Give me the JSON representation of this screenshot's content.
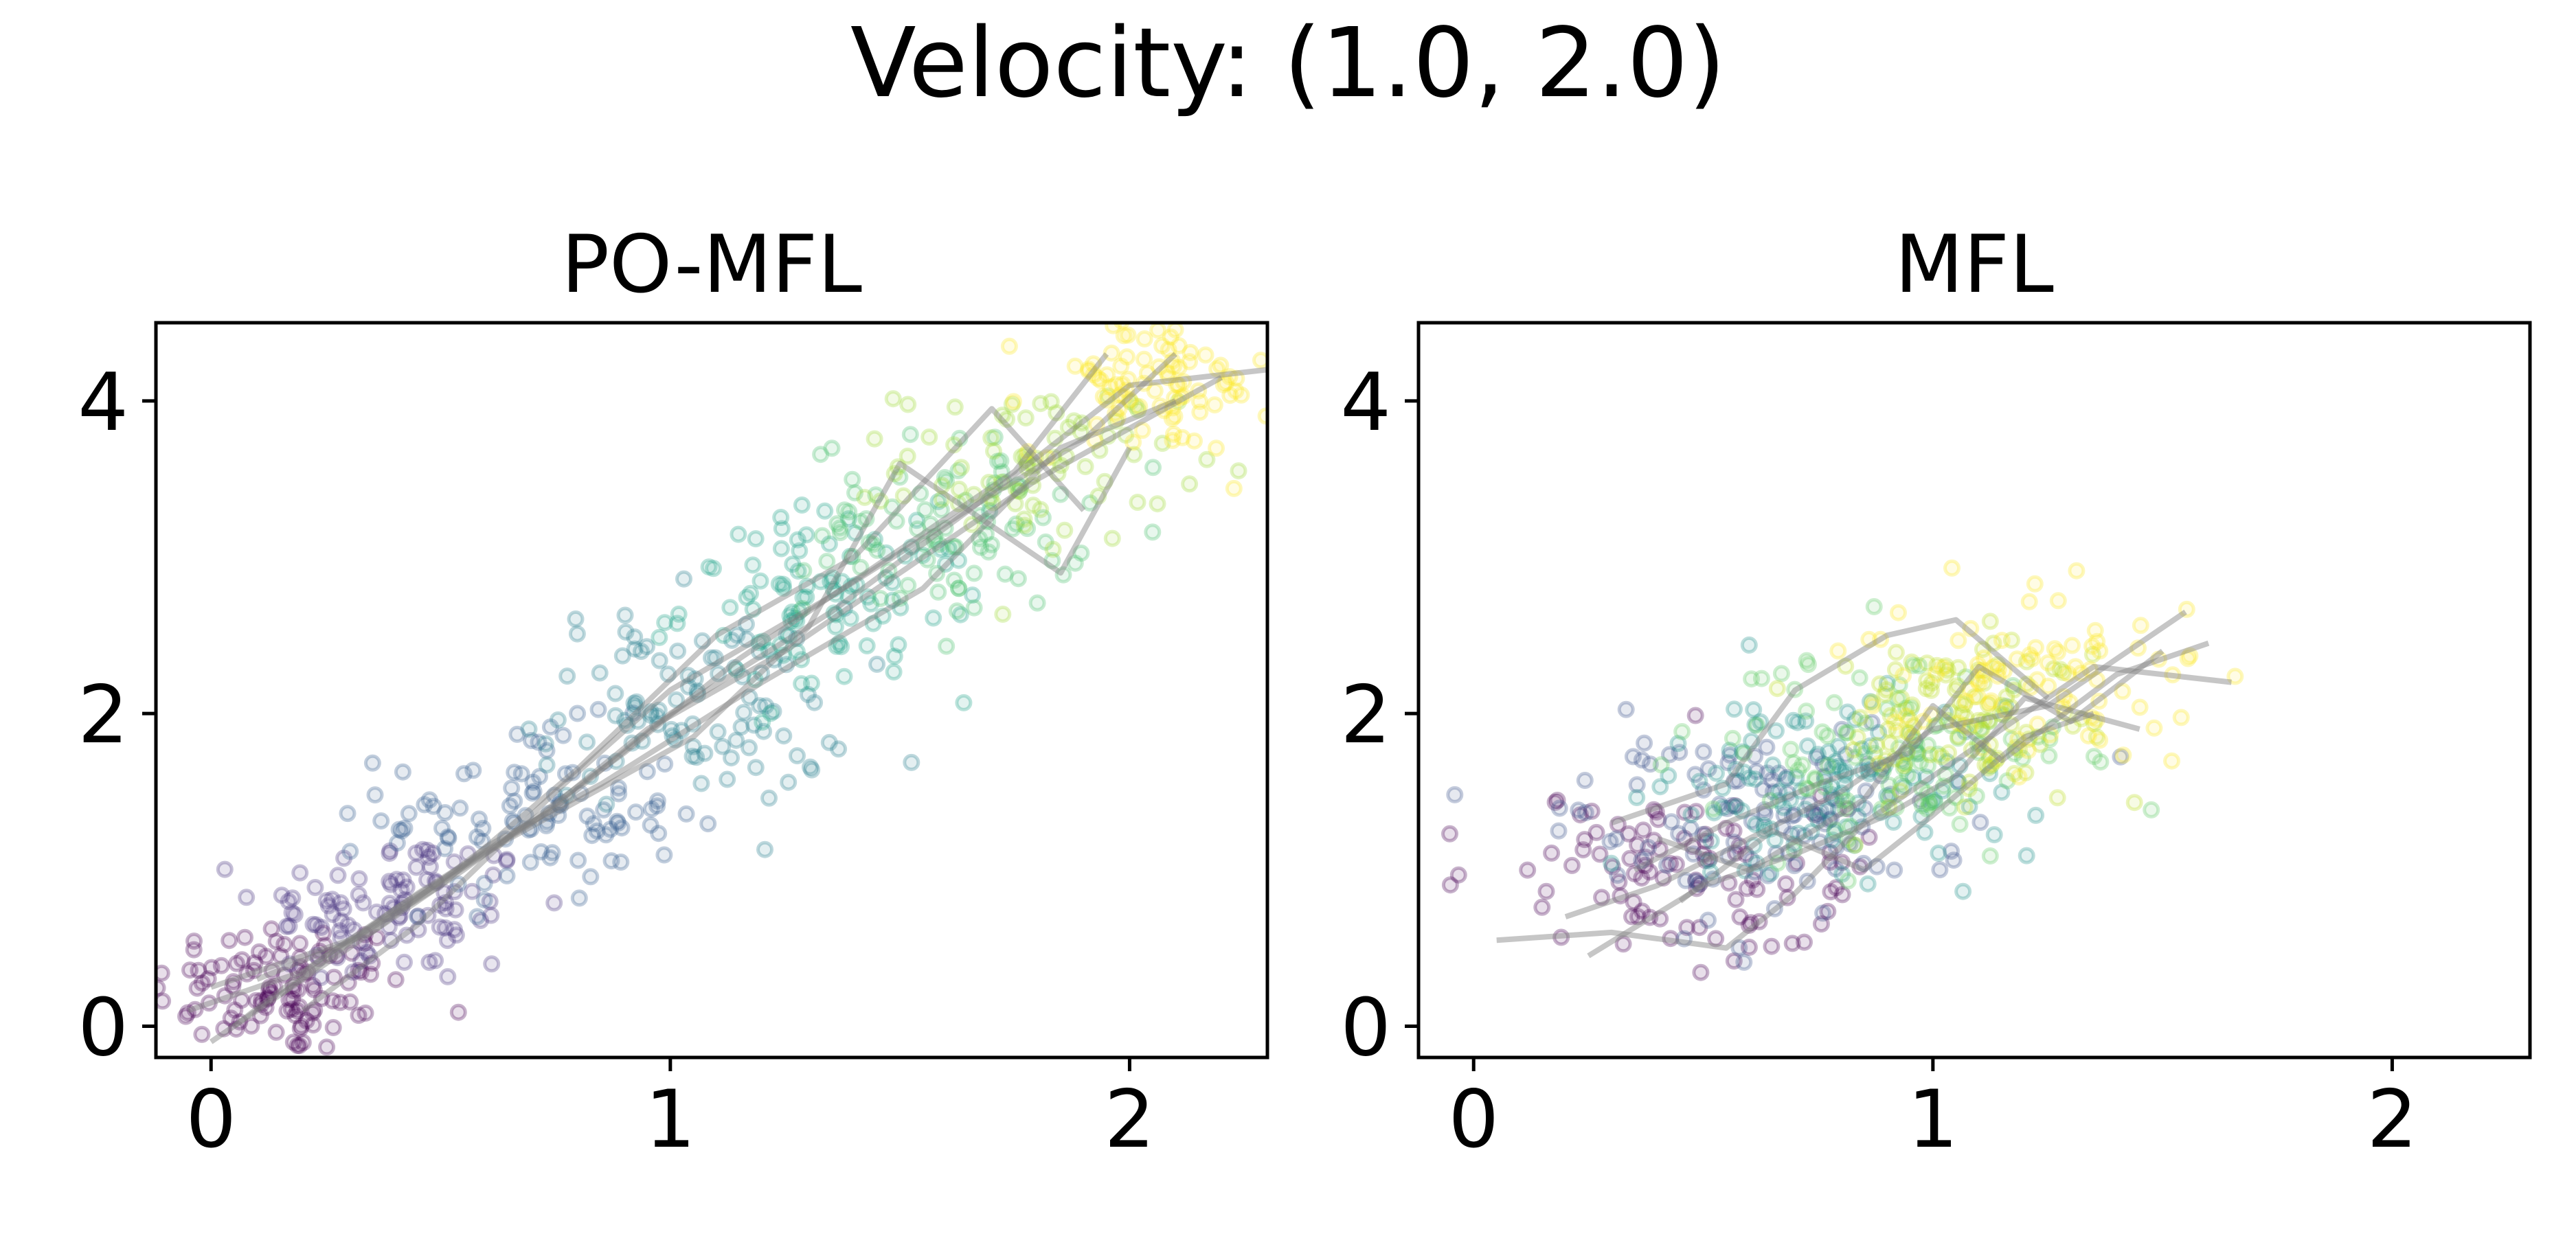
{
  "figure": {
    "suptitle": "Velocity: (1.0, 2.0)"
  },
  "chart_data": [
    {
      "type": "scatter",
      "title": "PO-MFL",
      "xlabel": "",
      "ylabel": "",
      "xlim": [
        -0.12,
        2.3
      ],
      "ylim": [
        -0.2,
        4.5
      ],
      "xticks": [
        0,
        1,
        2
      ],
      "xtick_labels": [
        "0",
        "1",
        "2"
      ],
      "yticks": [
        0,
        2,
        4
      ],
      "ytick_labels": [
        "0",
        "2",
        "4"
      ],
      "grid": false,
      "point_alpha": 0.25,
      "trajectory_color": "#808080",
      "colormap": [
        "#440154",
        "#3b528b",
        "#21918c",
        "#5ec962",
        "#fde725"
      ],
      "clusters": [
        {
          "color": "#440154",
          "center": [
            0.15,
            0.25
          ],
          "spread": [
            0.14,
            0.22
          ],
          "count": 110
        },
        {
          "color": "#46327e",
          "center": [
            0.4,
            0.75
          ],
          "spread": [
            0.15,
            0.25
          ],
          "count": 100
        },
        {
          "color": "#365c8d",
          "center": [
            0.7,
            1.35
          ],
          "spread": [
            0.16,
            0.28
          ],
          "count": 100
        },
        {
          "color": "#277f8e",
          "center": [
            1.05,
            2.05
          ],
          "spread": [
            0.17,
            0.32
          ],
          "count": 100
        },
        {
          "color": "#1fa187",
          "center": [
            1.35,
            2.7
          ],
          "spread": [
            0.16,
            0.3
          ],
          "count": 100
        },
        {
          "color": "#4ac16d",
          "center": [
            1.6,
            3.2
          ],
          "spread": [
            0.15,
            0.28
          ],
          "count": 90
        },
        {
          "color": "#a0da39",
          "center": [
            1.8,
            3.6
          ],
          "spread": [
            0.15,
            0.25
          ],
          "count": 80
        },
        {
          "color": "#fde725",
          "center": [
            2.05,
            4.1
          ],
          "spread": [
            0.13,
            0.22
          ],
          "count": 90
        }
      ],
      "trajectories": [
        [
          [
            -0.05,
            0.1
          ],
          [
            0.2,
            0.35
          ],
          [
            0.45,
            0.85
          ],
          [
            0.75,
            1.4
          ],
          [
            1.0,
            2.0
          ],
          [
            1.35,
            2.65
          ],
          [
            1.65,
            3.3
          ],
          [
            2.0,
            4.1
          ],
          [
            2.3,
            4.2
          ]
        ],
        [
          [
            0.0,
            -0.1
          ],
          [
            0.3,
            0.5
          ],
          [
            0.55,
            1.0
          ],
          [
            0.9,
            1.75
          ],
          [
            1.15,
            2.35
          ],
          [
            1.45,
            2.95
          ],
          [
            1.75,
            3.55
          ],
          [
            1.95,
            4.3
          ]
        ],
        [
          [
            0.1,
            0.3
          ],
          [
            0.35,
            0.6
          ],
          [
            0.6,
            1.15
          ],
          [
            0.85,
            1.55
          ],
          [
            1.2,
            2.2
          ],
          [
            1.55,
            2.8
          ],
          [
            1.85,
            3.7
          ],
          [
            2.1,
            4.0
          ]
        ],
        [
          [
            0.05,
            0.0
          ],
          [
            0.25,
            0.45
          ],
          [
            0.5,
            0.9
          ],
          [
            0.8,
            1.65
          ],
          [
            1.1,
            2.5
          ],
          [
            1.4,
            3.0
          ],
          [
            1.7,
            3.95
          ],
          [
            1.9,
            3.3
          ]
        ],
        [
          [
            0.15,
            0.2
          ],
          [
            0.4,
            0.75
          ],
          [
            0.7,
            1.3
          ],
          [
            0.95,
            1.9
          ],
          [
            1.25,
            2.4
          ],
          [
            1.6,
            3.1
          ],
          [
            1.8,
            3.5
          ],
          [
            2.2,
            4.15
          ]
        ],
        [
          [
            0.0,
            0.25
          ],
          [
            0.3,
            0.55
          ],
          [
            0.65,
            1.2
          ],
          [
            1.05,
            1.85
          ],
          [
            1.3,
            2.55
          ],
          [
            1.5,
            3.6
          ],
          [
            1.85,
            2.9
          ],
          [
            2.0,
            3.7
          ]
        ],
        [
          [
            0.2,
            0.1
          ],
          [
            0.45,
            0.65
          ],
          [
            0.75,
            1.5
          ],
          [
            1.0,
            2.15
          ],
          [
            1.35,
            2.75
          ],
          [
            1.7,
            3.4
          ],
          [
            1.9,
            3.75
          ],
          [
            2.1,
            4.3
          ]
        ]
      ]
    },
    {
      "type": "scatter",
      "title": "MFL",
      "xlabel": "",
      "ylabel": "",
      "xlim": [
        -0.12,
        2.3
      ],
      "ylim": [
        -0.2,
        4.5
      ],
      "xticks": [
        0,
        1,
        2
      ],
      "xtick_labels": [
        "0",
        "1",
        "2"
      ],
      "yticks": [
        0,
        2,
        4
      ],
      "ytick_labels": [
        "0",
        "2",
        "4"
      ],
      "grid": false,
      "point_alpha": 0.25,
      "trajectory_color": "#808080",
      "colormap": [
        "#440154",
        "#3b528b",
        "#21918c",
        "#5ec962",
        "#fde725"
      ],
      "clusters": [
        {
          "color": "#440154",
          "center": [
            0.45,
            1.0
          ],
          "spread": [
            0.2,
            0.28
          ],
          "count": 100
        },
        {
          "color": "#3b528b",
          "center": [
            0.6,
            1.3
          ],
          "spread": [
            0.2,
            0.3
          ],
          "count": 110
        },
        {
          "color": "#21918c",
          "center": [
            0.75,
            1.5
          ],
          "spread": [
            0.2,
            0.3
          ],
          "count": 120
        },
        {
          "color": "#5ec962",
          "center": [
            0.9,
            1.75
          ],
          "spread": [
            0.2,
            0.3
          ],
          "count": 110
        },
        {
          "color": "#bddf26",
          "center": [
            1.05,
            2.0
          ],
          "spread": [
            0.18,
            0.3
          ],
          "count": 100
        },
        {
          "color": "#fde725",
          "center": [
            1.2,
            2.2
          ],
          "spread": [
            0.2,
            0.3
          ],
          "count": 90
        }
      ],
      "trajectories": [
        [
          [
            0.05,
            0.55
          ],
          [
            0.3,
            0.6
          ],
          [
            0.55,
            0.5
          ],
          [
            0.7,
            0.85
          ],
          [
            0.85,
            1.3
          ],
          [
            1.1,
            1.8
          ],
          [
            1.35,
            2.3
          ],
          [
            1.65,
            2.2
          ]
        ],
        [
          [
            0.2,
            0.7
          ],
          [
            0.4,
            0.9
          ],
          [
            0.6,
            1.2
          ],
          [
            0.8,
            1.5
          ],
          [
            1.0,
            1.9
          ],
          [
            1.25,
            2.05
          ],
          [
            1.55,
            2.65
          ]
        ],
        [
          [
            0.35,
            1.0
          ],
          [
            0.55,
            1.3
          ],
          [
            0.75,
            1.55
          ],
          [
            0.95,
            1.75
          ],
          [
            1.1,
            2.3
          ],
          [
            1.3,
            1.95
          ],
          [
            1.5,
            2.4
          ]
        ],
        [
          [
            0.25,
            0.45
          ],
          [
            0.5,
            0.9
          ],
          [
            0.7,
            1.1
          ],
          [
            0.9,
            1.35
          ],
          [
            1.05,
            1.6
          ],
          [
            1.2,
            2.1
          ],
          [
            1.45,
            1.9
          ]
        ],
        [
          [
            0.4,
            1.2
          ],
          [
            0.6,
            1.0
          ],
          [
            0.85,
            1.45
          ],
          [
            1.0,
            2.05
          ],
          [
            1.15,
            1.7
          ],
          [
            1.4,
            2.25
          ],
          [
            1.6,
            2.45
          ]
        ],
        [
          [
            0.3,
            1.3
          ],
          [
            0.55,
            1.55
          ],
          [
            0.7,
            2.15
          ],
          [
            0.9,
            2.5
          ],
          [
            1.05,
            2.6
          ],
          [
            1.25,
            2.1
          ]
        ],
        [
          [
            0.45,
            0.8
          ],
          [
            0.65,
            1.25
          ],
          [
            0.85,
            1.0
          ],
          [
            1.0,
            1.35
          ],
          [
            1.2,
            1.85
          ],
          [
            1.35,
            2.0
          ]
        ]
      ]
    }
  ]
}
